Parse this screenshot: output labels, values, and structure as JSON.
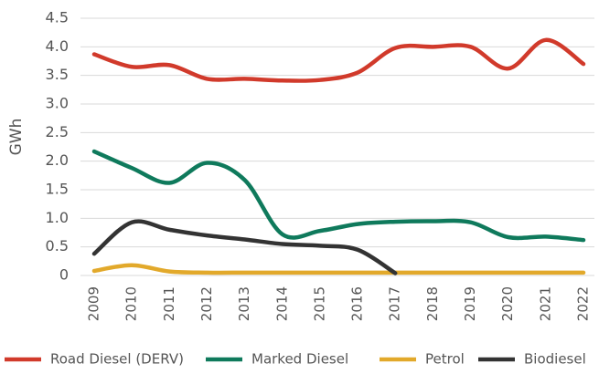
{
  "chart_data": {
    "type": "line",
    "y_label": "GWh",
    "categories": [
      "2009",
      "2010",
      "2011",
      "2012",
      "2013",
      "2014",
      "2015",
      "2016",
      "2017",
      "2018",
      "2019",
      "2020",
      "2021",
      "2022"
    ],
    "series": [
      {
        "name": "Road Diesel (DERV)",
        "color": "#d13a2b",
        "values": [
          3.87,
          3.65,
          3.68,
          3.44,
          3.44,
          3.41,
          3.42,
          3.55,
          3.98,
          4.0,
          4.0,
          3.62,
          4.12,
          3.7
        ]
      },
      {
        "name": "Marked Diesel",
        "color": "#0f7a5c",
        "values": [
          2.17,
          1.88,
          1.62,
          1.97,
          1.67,
          0.72,
          0.78,
          0.9,
          0.94,
          0.95,
          0.93,
          0.67,
          0.68,
          0.62
        ]
      },
      {
        "name": "Petrol",
        "color": "#e2a92b",
        "values": [
          0.08,
          0.18,
          0.07,
          0.05,
          0.05,
          0.05,
          0.05,
          0.05,
          0.05,
          0.05,
          0.05,
          0.05,
          0.05,
          0.05
        ]
      },
      {
        "name": "Biodiesel",
        "color": "#333333",
        "values": [
          0.38,
          0.93,
          0.8,
          0.7,
          0.63,
          0.55,
          0.52,
          0.45,
          0.04,
          null,
          null,
          null,
          null,
          null
        ]
      }
    ],
    "ylim": [
      0,
      4.5
    ],
    "yticks": [
      {
        "value": 0,
        "label": "0"
      },
      {
        "value": 0.5,
        "label": "0.5"
      },
      {
        "value": 1,
        "label": "1.0"
      },
      {
        "value": 1.5,
        "label": "1.5"
      },
      {
        "value": 2,
        "label": "2.0"
      },
      {
        "value": 2.5,
        "label": "2.5"
      },
      {
        "value": 3,
        "label": "3.0"
      },
      {
        "value": 3.5,
        "label": "3.5"
      },
      {
        "value": 4,
        "label": "4.0"
      },
      {
        "value": 4.5,
        "label": "4.5"
      }
    ],
    "grid": true,
    "legend": "bottom"
  }
}
